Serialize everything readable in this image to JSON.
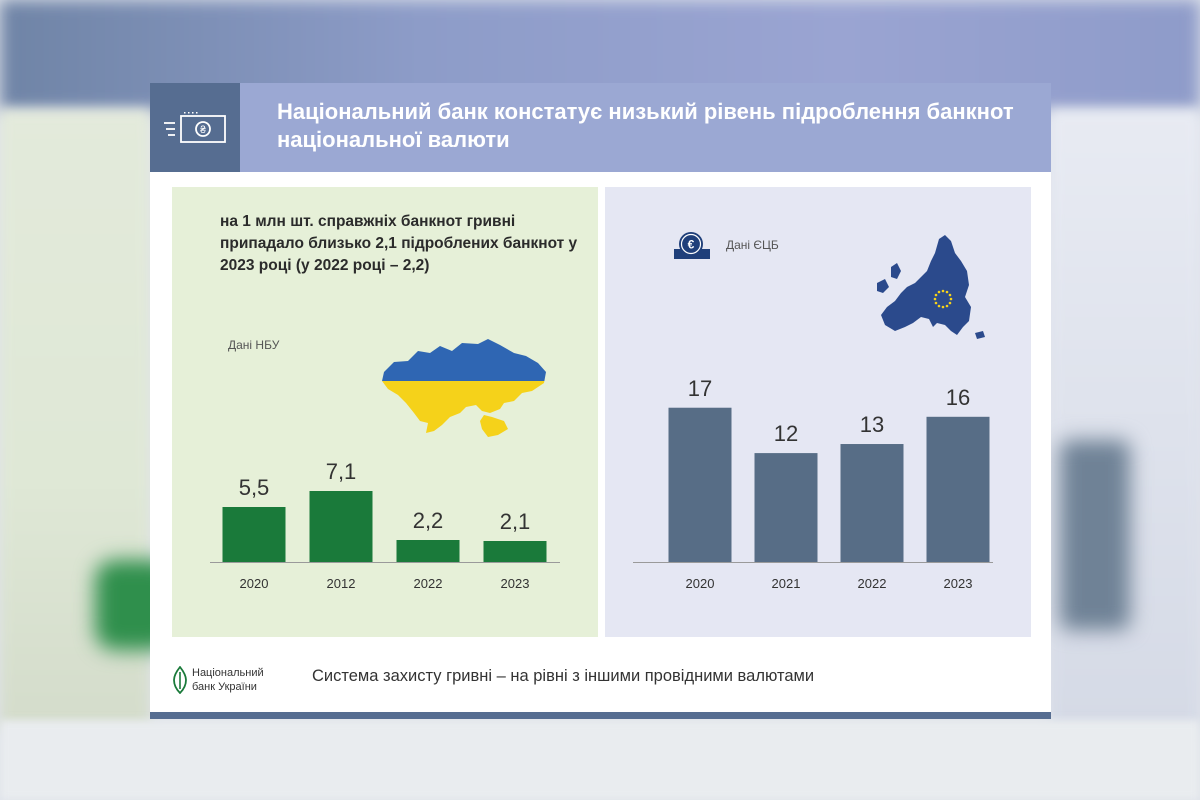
{
  "header": {
    "title": "Національний банк констатує низький рівень підроблення банкнот національної валюти",
    "icon": "banknote-icon"
  },
  "left_panel": {
    "text": "на 1 млн шт. справжніх банкнот гривні припадало близько 2,1 підроблених банкнот у 2023 році (у 2022 році – 2,2)",
    "source": "Дані НБУ",
    "bar_color": "#1a7a3a",
    "map_colors": {
      "top": "#2f66b3",
      "bottom": "#f5d21a"
    }
  },
  "right_panel": {
    "source": "Дані ЄЦБ",
    "bar_color": "#576d86",
    "icon": "euro-icon",
    "map_color": "#2b4a8c"
  },
  "chart_data": [
    {
      "type": "bar",
      "categories": [
        "2020",
        "2012",
        "2022",
        "2023"
      ],
      "values": [
        5.5,
        7.1,
        2.2,
        2.1
      ],
      "value_labels": [
        "5,5",
        "7,1",
        "2,2",
        "2,1"
      ],
      "title": "",
      "xlabel": "",
      "ylabel": "",
      "ylim": [
        0,
        11.5
      ]
    },
    {
      "type": "bar",
      "categories": [
        "2020",
        "2021",
        "2022",
        "2023"
      ],
      "values": [
        17,
        12,
        13,
        16
      ],
      "value_labels": [
        "17",
        "12",
        "13",
        "16"
      ],
      "title": "",
      "xlabel": "",
      "ylabel": "",
      "ylim": [
        0,
        17.3
      ]
    }
  ],
  "footer": {
    "logo_line1": "Національний",
    "logo_line2": "банк України",
    "tagline": "Система захисту гривні – на рівні з іншими провідними валютами"
  }
}
